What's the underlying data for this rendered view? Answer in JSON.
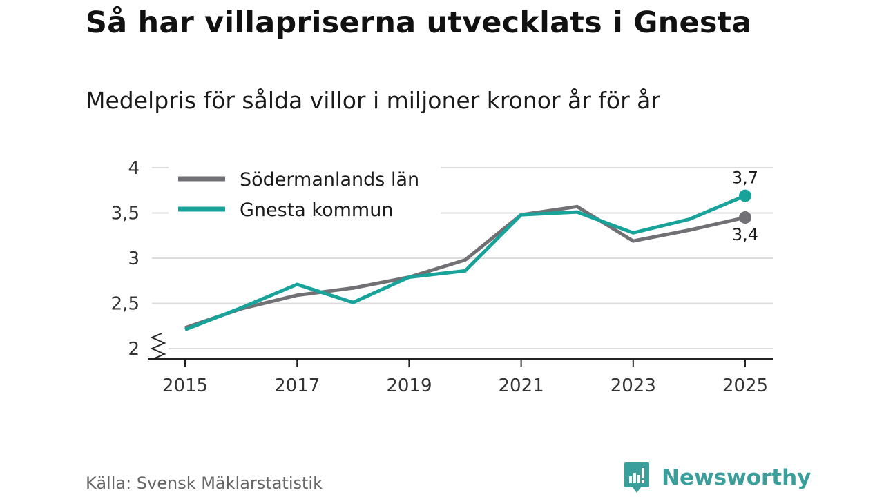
{
  "chart_data": {
    "type": "line",
    "title": "Så har villapriserna utvecklats i Gnesta",
    "subtitle": "Medelpris för sålda villor i miljoner kronor år för år",
    "xlabel": "",
    "ylabel": "",
    "x": [
      2015,
      2016,
      2017,
      2018,
      2019,
      2020,
      2021,
      2022,
      2023,
      2024,
      2025
    ],
    "xticks": [
      2015,
      2017,
      2019,
      2021,
      2023,
      2025
    ],
    "xtick_labels": [
      "2015",
      "2017",
      "2019",
      "2021",
      "2023",
      "2025"
    ],
    "ylim": [
      2,
      4
    ],
    "yticks": [
      2,
      2.5,
      3,
      3.5,
      4
    ],
    "ytick_labels": [
      "2",
      "2,5",
      "3",
      "3,5",
      "4"
    ],
    "y_axis_break": true,
    "grid": true,
    "legend_position": "top-left",
    "series": [
      {
        "name": "Södermanlands län",
        "color": "#717075",
        "values": [
          2.23,
          2.44,
          2.59,
          2.67,
          2.79,
          2.98,
          3.48,
          3.57,
          3.19,
          3.31,
          3.45
        ],
        "end_label": "3,4"
      },
      {
        "name": "Gnesta kommun",
        "color": "#18a39a",
        "values": [
          2.21,
          2.45,
          2.71,
          2.51,
          2.79,
          2.86,
          3.48,
          3.51,
          3.28,
          3.43,
          3.69
        ],
        "end_label": "3,7"
      }
    ]
  },
  "footer": {
    "source": "Källa: Svensk Mäklarstatistik",
    "brand": "Newsworthy",
    "brand_color": "#3a9e9a"
  }
}
